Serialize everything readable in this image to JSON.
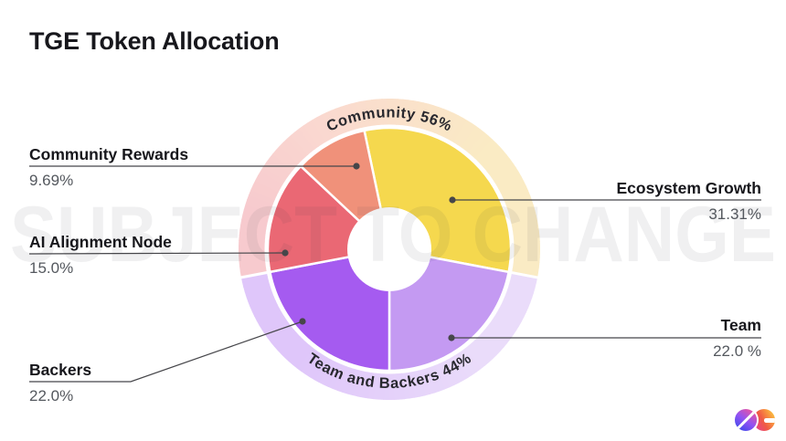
{
  "page": {
    "title": "TGE Token Allocation"
  },
  "watermark": {
    "text": "SUBJECT TO CHANGE"
  },
  "logo": {
    "name": "0G"
  },
  "chart_data": {
    "type": "pie",
    "variant": "donut",
    "title": "TGE Token Allocation",
    "legend_position": "callouts",
    "start_angle_deg": 348.1,
    "segments": [
      {
        "label": "Ecosystem Growth",
        "value": 31.31,
        "display": "31.31%",
        "color": "#F5D84E",
        "ring_color": "#FAEBC4",
        "group": "Community"
      },
      {
        "label": "Team",
        "value": 22.0,
        "display": "22.0 %",
        "color": "#C49AF2",
        "ring_color": "#EADCFA",
        "group": "Team and Backers"
      },
      {
        "label": "Backers",
        "value": 22.0,
        "display": "22.0%",
        "color": "#A55BF0",
        "ring_color": "#DFC6FA",
        "group": "Team and Backers"
      },
      {
        "label": "AI Alignment Node",
        "value": 15.0,
        "display": "15.0%",
        "color": "#EA6874",
        "ring_color": "#F7CACE",
        "group": "Community"
      },
      {
        "label": "Community Rewards",
        "value": 9.69,
        "display": "9.69%",
        "color": "#F0917A",
        "ring_color": "#FAD8D0",
        "group": "Community"
      }
    ],
    "groups": [
      {
        "label": "Community 56%",
        "value": 56,
        "position": "top"
      },
      {
        "label": "Team and Backers 44%",
        "value": 44,
        "position": "bottom"
      }
    ]
  }
}
